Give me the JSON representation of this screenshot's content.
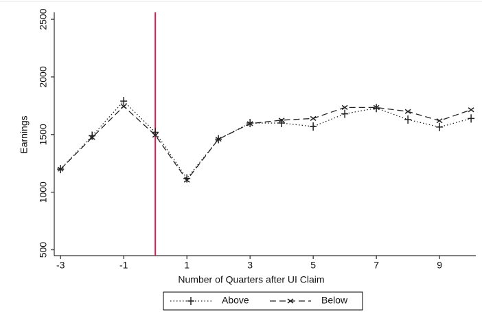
{
  "chart_data": {
    "type": "line",
    "x_label": "Number of Quarters after UI Claim",
    "y_label": "Earnings",
    "x": [
      -3,
      -2,
      -1,
      0,
      1,
      2,
      3,
      4,
      5,
      6,
      7,
      8,
      9,
      10
    ],
    "series": [
      {
        "name": "Above",
        "color": "#222222",
        "dash": "dotted",
        "marker": "+",
        "values": [
          1200,
          1490,
          1790,
          1520,
          1120,
          1460,
          1600,
          1600,
          1570,
          1680,
          1730,
          1630,
          1565,
          1640
        ]
      },
      {
        "name": "Below",
        "color": "#222222",
        "dash": "dashed",
        "marker": "x",
        "values": [
          1200,
          1475,
          1745,
          1495,
          1105,
          1460,
          1595,
          1625,
          1640,
          1735,
          1735,
          1700,
          1620,
          1715
        ]
      }
    ],
    "xlim": [
      -3.2,
      10.15
    ],
    "xticks": [
      -3,
      -1,
      1,
      3,
      5,
      7,
      9
    ],
    "ylim": [
      450,
      2560
    ],
    "yticks": [
      500,
      1000,
      1500,
      2000,
      2500
    ],
    "vline": {
      "x": 0,
      "color": "#d81b50"
    },
    "grid": false,
    "legend": "bottom"
  }
}
